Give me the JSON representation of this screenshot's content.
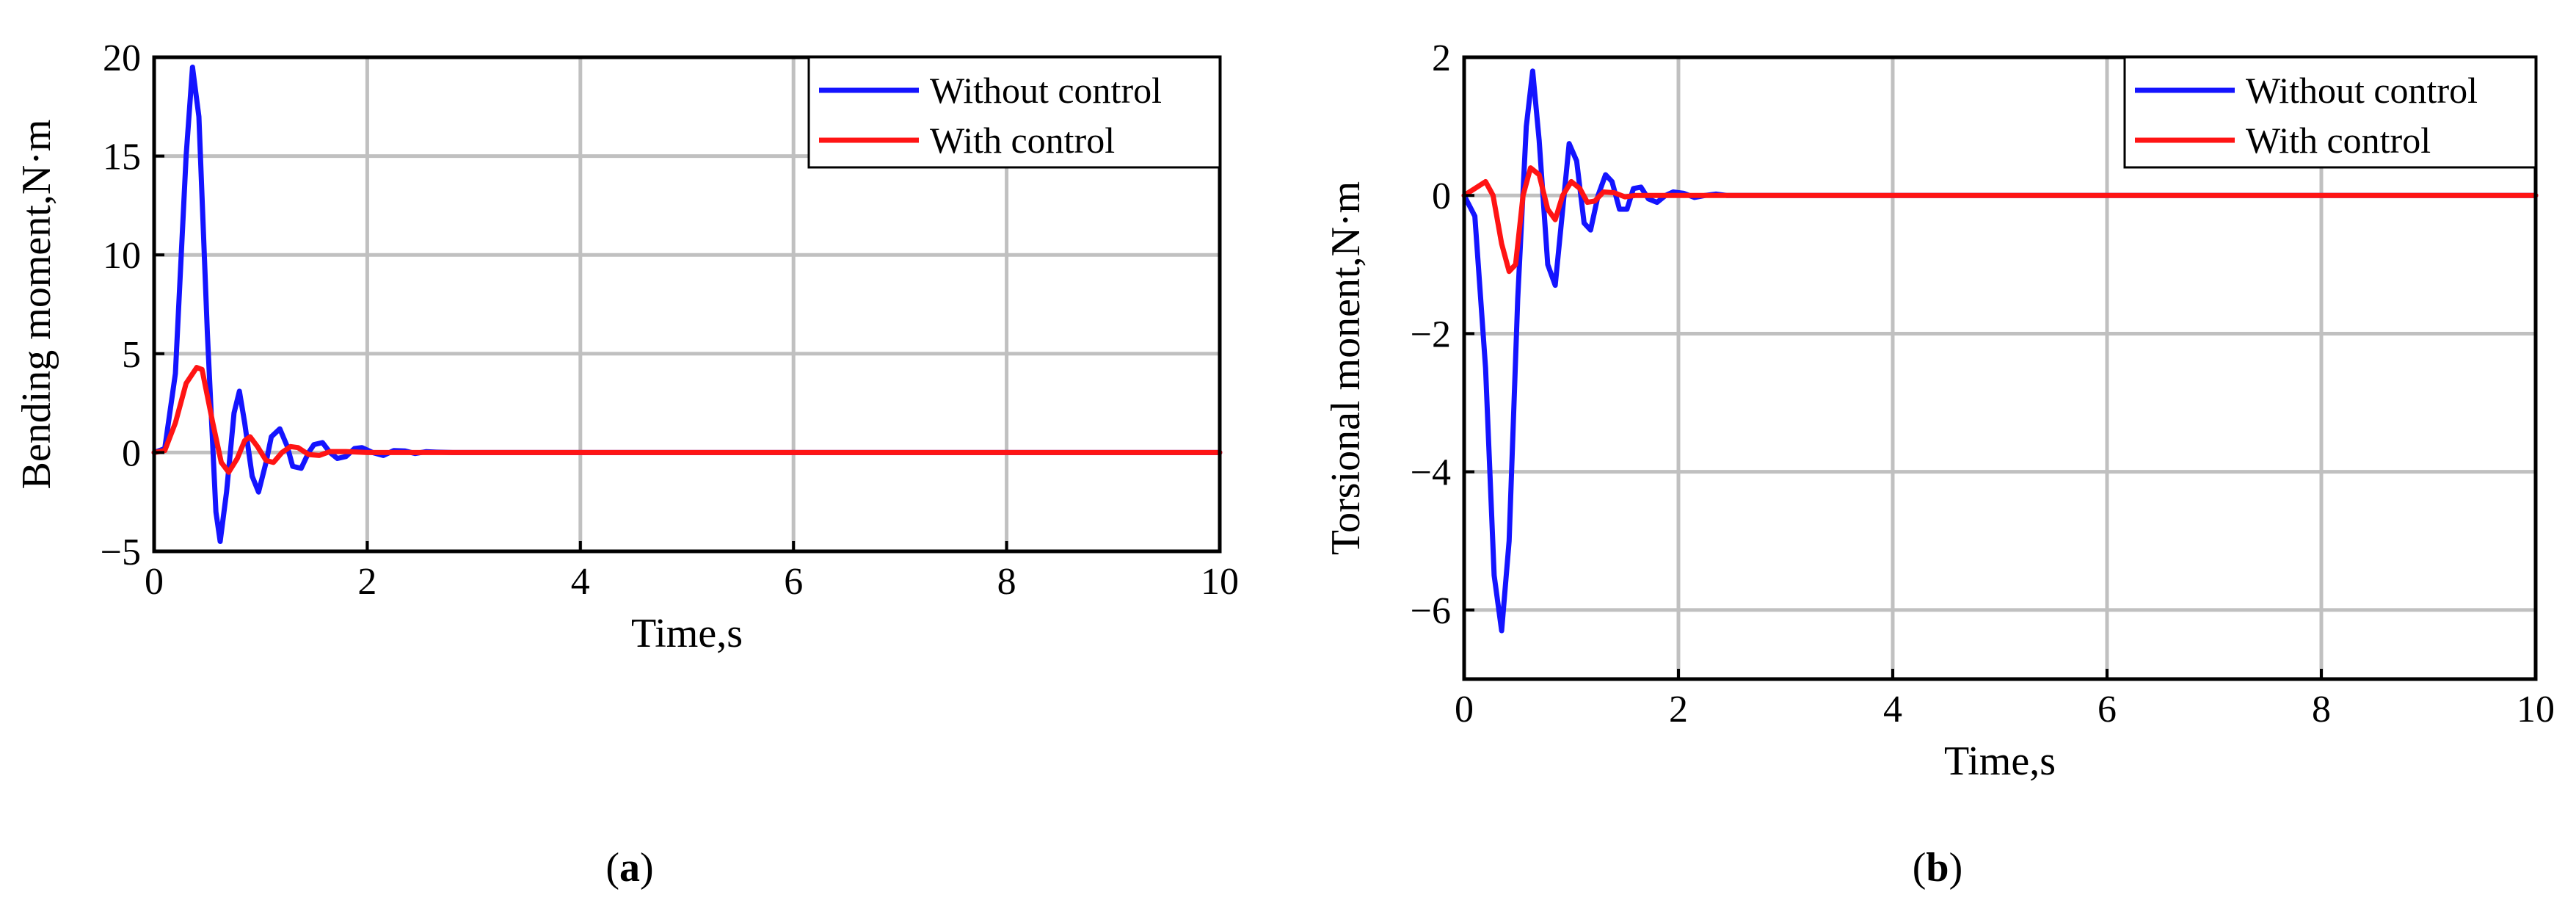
{
  "figure": {
    "panels": [
      {
        "label_open": "(",
        "label_letter": "a",
        "label_close": ")"
      },
      {
        "label_open": "(",
        "label_letter": "b",
        "label_close": ")"
      }
    ]
  },
  "chart_data": [
    {
      "type": "line",
      "title": "",
      "xlabel": "Time,s",
      "ylabel": "Bending moment,N·m",
      "xlim": [
        0,
        10
      ],
      "ylim": [
        -5,
        20
      ],
      "xticks": [
        0,
        2,
        4,
        6,
        8,
        10
      ],
      "yticks": [
        -5,
        0,
        5,
        10,
        15,
        20
      ],
      "xtick_labels": [
        "0",
        "2",
        "4",
        "6",
        "8",
        "10"
      ],
      "ytick_labels": [
        "−5",
        "0",
        "5",
        "10",
        "15",
        "20"
      ],
      "grid": true,
      "legend": "top-right",
      "colors": {
        "blue": "#1414ff",
        "red": "#ff1414",
        "grid": "#c0c0c0"
      },
      "series": [
        {
          "name": "Without control",
          "color": "#1414ff",
          "x": [
            0,
            0.1,
            0.2,
            0.3,
            0.36,
            0.42,
            0.5,
            0.58,
            0.62,
            0.68,
            0.75,
            0.8,
            0.85,
            0.92,
            0.98,
            1.05,
            1.1,
            1.18,
            1.25,
            1.3,
            1.38,
            1.45,
            1.5,
            1.58,
            1.65,
            1.72,
            1.8,
            1.88,
            1.95,
            2.05,
            2.15,
            2.25,
            2.35,
            2.45,
            2.55,
            2.65,
            2.8,
            3.0,
            10
          ],
          "y": [
            0,
            0.2,
            4,
            15,
            19.5,
            17,
            6,
            -3,
            -4.5,
            -2,
            2,
            3.1,
            1.5,
            -1.2,
            -2,
            -0.5,
            0.8,
            1.2,
            0.3,
            -0.7,
            -0.8,
            0,
            0.4,
            0.5,
            0,
            -0.3,
            -0.2,
            0.2,
            0.25,
            0,
            -0.15,
            0.1,
            0.08,
            -0.05,
            0.04,
            0.02,
            0,
            0,
            0
          ]
        },
        {
          "name": "With control",
          "color": "#ff1414",
          "x": [
            0,
            0.1,
            0.2,
            0.3,
            0.4,
            0.45,
            0.55,
            0.63,
            0.7,
            0.78,
            0.85,
            0.9,
            0.97,
            1.05,
            1.12,
            1.2,
            1.28,
            1.35,
            1.45,
            1.55,
            1.65,
            1.8,
            2.0,
            2.3,
            10
          ],
          "y": [
            0,
            0.1,
            1.5,
            3.5,
            4.3,
            4.2,
            1.5,
            -0.5,
            -1,
            -0.3,
            0.6,
            0.8,
            0.3,
            -0.4,
            -0.5,
            0,
            0.3,
            0.25,
            -0.1,
            -0.15,
            0.05,
            0.05,
            0,
            0,
            0
          ]
        }
      ]
    },
    {
      "type": "line",
      "title": "",
      "xlabel": "Time,s",
      "ylabel": "Torsional monent,N·m",
      "xlim": [
        0,
        10
      ],
      "ylim": [
        -7,
        2
      ],
      "xticks": [
        0,
        2,
        4,
        6,
        8,
        10
      ],
      "yticks": [
        -6,
        -4,
        -2,
        0,
        2
      ],
      "xtick_labels": [
        "0",
        "2",
        "4",
        "6",
        "8",
        "10"
      ],
      "ytick_labels": [
        "−6",
        "−4",
        "−2",
        "0",
        "2"
      ],
      "grid": true,
      "legend": "top-right",
      "colors": {
        "blue": "#1414ff",
        "red": "#ff1414",
        "grid": "#c0c0c0"
      },
      "series": [
        {
          "name": "Without control",
          "color": "#1414ff",
          "x": [
            0,
            0.1,
            0.2,
            0.28,
            0.35,
            0.42,
            0.5,
            0.58,
            0.64,
            0.7,
            0.78,
            0.85,
            0.92,
            0.98,
            1.05,
            1.12,
            1.18,
            1.25,
            1.32,
            1.38,
            1.45,
            1.52,
            1.58,
            1.65,
            1.72,
            1.8,
            1.88,
            1.95,
            2.05,
            2.15,
            2.25,
            2.35,
            2.45,
            2.6,
            2.8,
            3.0,
            10
          ],
          "y": [
            0,
            -0.3,
            -2.5,
            -5.5,
            -6.3,
            -5,
            -1.5,
            1,
            1.8,
            0.8,
            -1,
            -1.3,
            -0.2,
            0.75,
            0.5,
            -0.4,
            -0.5,
            0,
            0.3,
            0.2,
            -0.2,
            -0.2,
            0.1,
            0.12,
            -0.05,
            -0.1,
            0,
            0.05,
            0.03,
            -0.03,
            0,
            0.02,
            0,
            0,
            0,
            0,
            0
          ]
        },
        {
          "name": "With control",
          "color": "#ff1414",
          "x": [
            0,
            0.1,
            0.2,
            0.27,
            0.35,
            0.42,
            0.48,
            0.55,
            0.62,
            0.7,
            0.78,
            0.85,
            0.92,
            1.0,
            1.08,
            1.15,
            1.22,
            1.3,
            1.4,
            1.5,
            1.6,
            1.8,
            2.0,
            10
          ],
          "y": [
            0,
            0.1,
            0.2,
            0,
            -0.7,
            -1.1,
            -1.0,
            0,
            0.4,
            0.3,
            -0.2,
            -0.35,
            0,
            0.2,
            0.1,
            -0.1,
            -0.08,
            0.05,
            0.04,
            -0.02,
            0,
            0,
            0,
            0
          ]
        }
      ]
    }
  ]
}
